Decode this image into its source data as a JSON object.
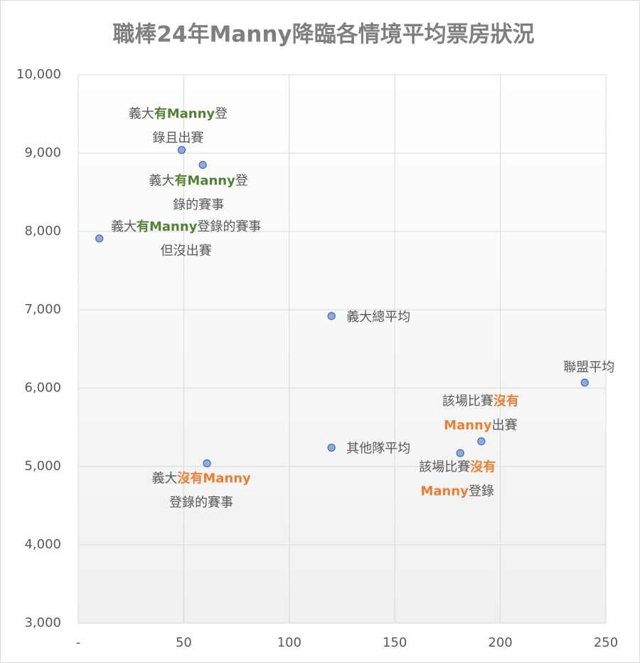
{
  "chart_data": {
    "type": "scatter",
    "title": "職棒24年Manny降臨各情境平均票房狀況",
    "x": [
      49,
      59,
      10,
      120,
      240,
      191,
      120,
      181,
      61
    ],
    "values": [
      9040,
      8850,
      7910,
      6920,
      6070,
      5320,
      5240,
      5170,
      5040
    ],
    "color": "#8faadc",
    "edge_color": "#4472c4",
    "point_labels": [
      [
        [
          {
            "text": "義大"
          },
          {
            "text": "有Manny",
            "color": "#548235"
          },
          {
            "text": "登"
          }
        ],
        [
          {
            "text": "錄且出賽"
          }
        ]
      ],
      [
        [
          {
            "text": "義大"
          },
          {
            "text": "有Manny",
            "color": "#548235"
          },
          {
            "text": "登"
          }
        ],
        [
          {
            "text": "錄的賽事"
          }
        ]
      ],
      [
        [
          {
            "text": "義大"
          },
          {
            "text": "有Manny",
            "color": "#548235"
          },
          {
            "text": "登錄的賽事"
          }
        ],
        [
          {
            "text": "但沒出賽"
          }
        ]
      ],
      [
        [
          {
            "text": "義大總平均"
          }
        ]
      ],
      [
        [
          {
            "text": "聯盟平均"
          }
        ]
      ],
      [
        [
          {
            "text": "該場比賽"
          },
          {
            "text": "沒有",
            "color": "#ed7d31"
          }
        ],
        [
          {
            "text": "Manny",
            "color": "#ed7d31"
          },
          {
            "text": "出賽"
          }
        ]
      ],
      [
        [
          {
            "text": "其他隊平均"
          }
        ]
      ],
      [
        [
          {
            "text": "該場比賽"
          },
          {
            "text": "沒有",
            "color": "#ed7d31"
          }
        ],
        [
          {
            "text": "Manny",
            "color": "#ed7d31"
          },
          {
            "text": "登錄"
          }
        ]
      ],
      [
        [
          {
            "text": "義大"
          },
          {
            "text": "沒有Manny",
            "color": "#ed7d31"
          }
        ],
        [
          {
            "text": "登錄的賽事"
          }
        ]
      ]
    ],
    "xlim": [
      0,
      250
    ],
    "ylim": [
      3000,
      10000
    ],
    "xticks": [
      {
        "value": 0,
        "label": "-"
      },
      50,
      100,
      150,
      200,
      250
    ],
    "yticks": [
      {
        "value": 3000,
        "label": "3,000"
      },
      {
        "value": 4000,
        "label": "4,000"
      },
      {
        "value": 5000,
        "label": "5,000"
      },
      {
        "value": 6000,
        "label": "6,000"
      },
      {
        "value": 7000,
        "label": "7,000"
      },
      {
        "value": 8000,
        "label": "8,000"
      },
      {
        "value": 9000,
        "label": "9,000"
      },
      {
        "value": 10000,
        "label": "10,000"
      }
    ],
    "grid": true
  }
}
